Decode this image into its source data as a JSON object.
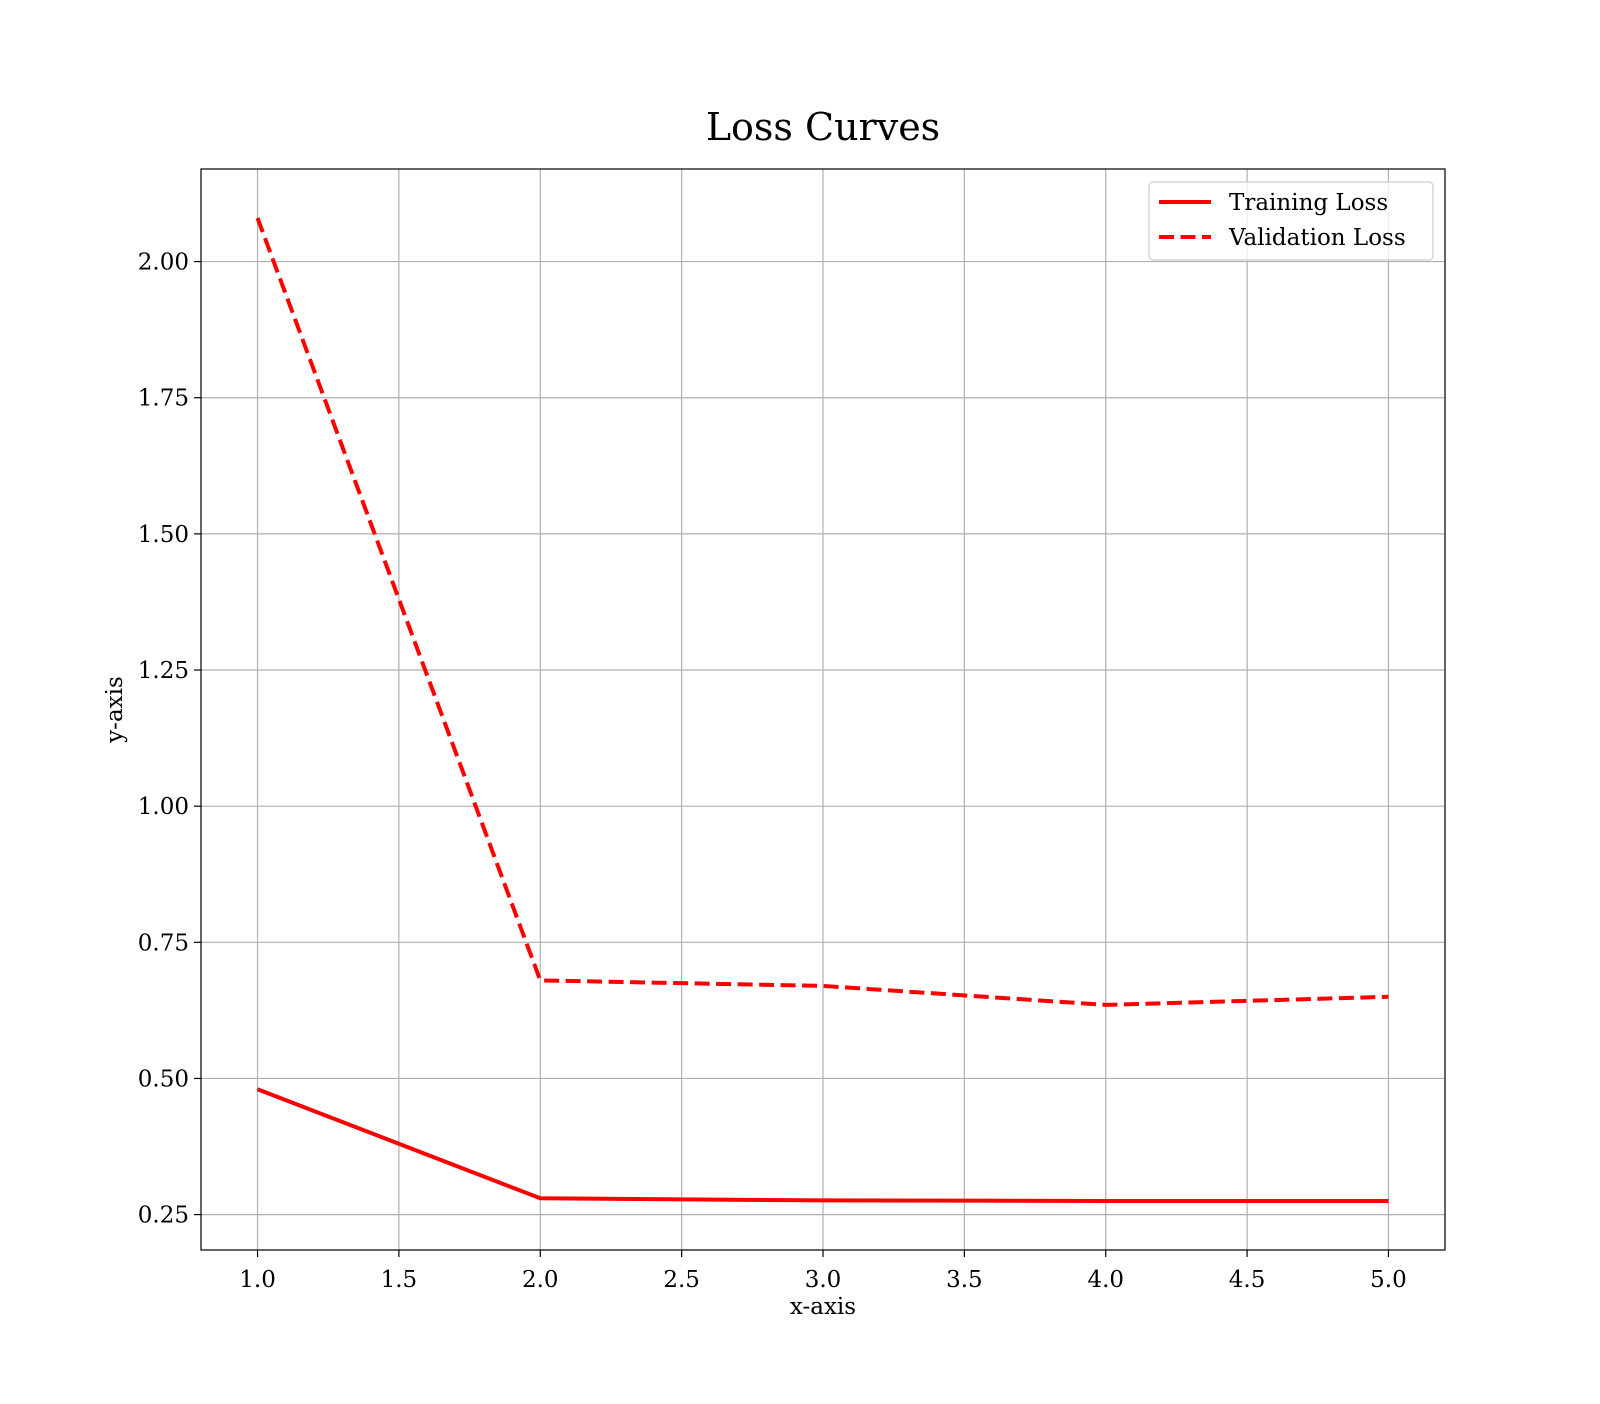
{
  "chart_data": {
    "type": "line",
    "title": "Loss Curves",
    "xlabel": "x-axis",
    "ylabel": "y-axis",
    "x": [
      1,
      2,
      3,
      4,
      5
    ],
    "xlim": [
      0.8,
      5.2
    ],
    "ylim": [
      0.185,
      2.17
    ],
    "xticks": [
      1.0,
      1.5,
      2.0,
      2.5,
      3.0,
      3.5,
      4.0,
      4.5,
      5.0
    ],
    "xtick_labels": [
      "1.0",
      "1.5",
      "2.0",
      "2.5",
      "3.0",
      "3.5",
      "4.0",
      "4.5",
      "5.0"
    ],
    "yticks": [
      0.25,
      0.5,
      0.75,
      1.0,
      1.25,
      1.5,
      1.75,
      2.0
    ],
    "ytick_labels": [
      "0.25",
      "0.50",
      "0.75",
      "1.00",
      "1.25",
      "1.50",
      "1.75",
      "2.00"
    ],
    "grid": true,
    "legend_position": "top-right",
    "series": [
      {
        "name": "Training Loss",
        "values": [
          0.48,
          0.28,
          0.276,
          0.275,
          0.275
        ],
        "color": "#ff0000",
        "style": "solid"
      },
      {
        "name": "Validation Loss",
        "values": [
          2.08,
          0.68,
          0.67,
          0.635,
          0.65
        ],
        "color": "#ff0000",
        "style": "dashed"
      }
    ]
  }
}
